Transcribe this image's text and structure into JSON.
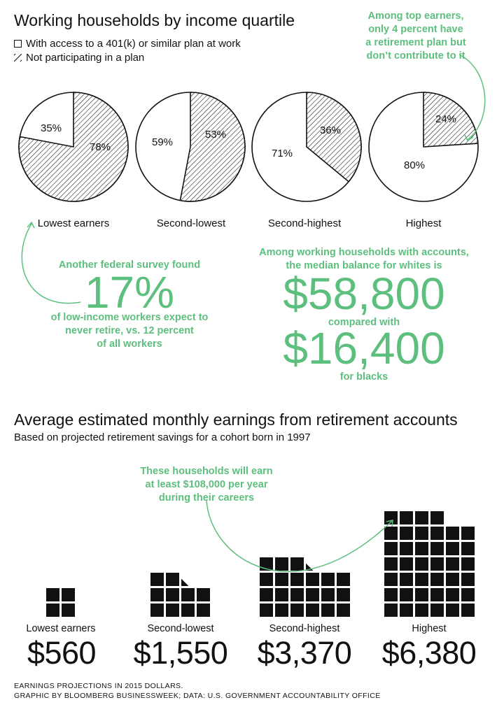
{
  "section1": {
    "title": "Working households by income quartile",
    "legend": [
      {
        "label": "With access to a 401(k) or similar plan at work"
      },
      {
        "label": "Not participating in a plan"
      }
    ],
    "top_callout": [
      "Among top earners,",
      "only 4 percent have",
      "a retirement plan but",
      "don’t contribute to it"
    ],
    "survey_callout": {
      "line1": "Another federal survey found",
      "big": "17%",
      "rest": [
        "of low-income workers expect to",
        "never retire, vs. 12 percent",
        "of all workers"
      ]
    },
    "balance_callout": {
      "line1": "Among working households with accounts,",
      "line2": "the median balance for whites is",
      "big1": "$58,800",
      "mid": "compared with",
      "big2": "$16,400",
      "end": "for blacks"
    }
  },
  "section2": {
    "title": "Average estimated monthly earnings from retirement accounts",
    "subtitle": "Based on projected retirement savings for a cohort born in 1997",
    "callout": [
      "These households will earn",
      "at least $108,000 per year",
      "during their careers"
    ]
  },
  "footer": [
    "EARNINGS PROJECTIONS IN 2015 DOLLARS.",
    "GRAPHIC BY BLOOMBERG BUSINESSWEEK; DATA: U.S. GOVERNMENT ACCOUNTABILITY OFFICE"
  ],
  "colors": {
    "accent": "#5dbf7d",
    "ink": "#111111",
    "hatch_bg": "#ffffff"
  },
  "chart_data": [
    {
      "type": "pie",
      "title": "Working households by income quartile",
      "categories": [
        "Lowest earners",
        "Second-lowest",
        "Second-highest",
        "Highest"
      ],
      "series": [
        {
          "name": "With access to a 401(k) or similar plan at work",
          "values": [
            35,
            59,
            71,
            80
          ]
        },
        {
          "name": "Not participating in a plan",
          "values": [
            78,
            53,
            36,
            24
          ]
        }
      ],
      "labels": [
        {
          "access": "35%",
          "not": "78%"
        },
        {
          "access": "59%",
          "not": "53%"
        },
        {
          "access": "71%",
          "not": "36%"
        },
        {
          "access": "80%",
          "not": "24%"
        }
      ]
    },
    {
      "type": "bar",
      "title": "Average estimated monthly earnings from retirement accounts",
      "categories": [
        "Lowest earners",
        "Second-lowest",
        "Second-highest",
        "Highest"
      ],
      "values": [
        560,
        1550,
        3370,
        6380
      ],
      "value_labels": [
        "$560",
        "$1,550",
        "$3,370",
        "$6,380"
      ]
    }
  ]
}
